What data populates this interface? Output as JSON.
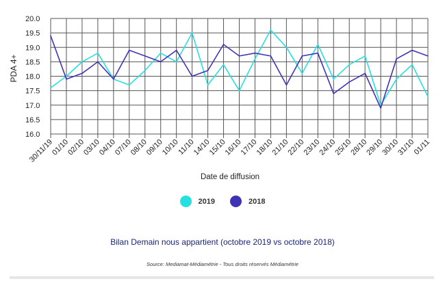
{
  "chart_data": {
    "type": "line",
    "ylabel": "PDA 4+",
    "xlabel": "Date de diffusion",
    "ylim": [
      16.0,
      20.0
    ],
    "yticks": [
      "16.0",
      "16.5",
      "17.0",
      "17.5",
      "18.0",
      "18.5",
      "19.0",
      "19.5",
      "20.0"
    ],
    "categories": [
      "30/11/19",
      "01/10",
      "02/10",
      "03/10",
      "04/10",
      "07/10",
      "08/10",
      "09/10",
      "10/10",
      "11/10",
      "14/10",
      "15/10",
      "16/10",
      "17/10",
      "18/10",
      "21/10",
      "22/10",
      "23/10",
      "24/10",
      "25/10",
      "28/10",
      "29/10",
      "30/10",
      "31/10",
      "01/11"
    ],
    "grid": true,
    "legend_position": "bottom",
    "series": [
      {
        "name": "2019",
        "color": "#26e0e0",
        "values": [
          17.6,
          18.0,
          18.5,
          18.8,
          17.9,
          17.7,
          18.2,
          18.8,
          18.5,
          19.5,
          17.7,
          18.4,
          17.5,
          18.6,
          19.6,
          19.0,
          18.1,
          19.1,
          17.9,
          18.4,
          18.7,
          17.0,
          17.9,
          18.4,
          17.3
        ]
      },
      {
        "name": "2018",
        "color": "#3f33b5",
        "values": [
          19.4,
          17.9,
          18.1,
          18.5,
          17.9,
          18.9,
          18.7,
          18.5,
          18.9,
          18.0,
          18.2,
          19.1,
          18.7,
          18.8,
          18.7,
          17.7,
          18.7,
          18.8,
          17.4,
          17.8,
          18.1,
          16.9,
          18.6,
          18.9,
          18.7
        ]
      }
    ]
  },
  "caption": "Bilan Demain nous appartient (octobre 2019 vs octobre 2018)",
  "source": "Source: Mediamat-Médiamétrie - Tous droits réservés Médiamétrie"
}
